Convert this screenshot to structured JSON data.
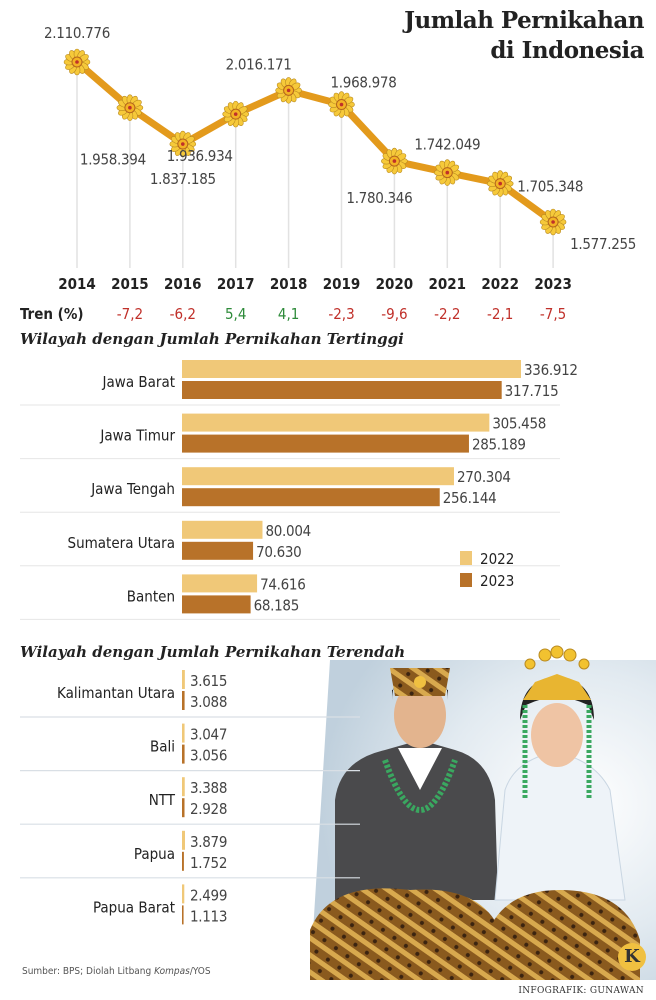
{
  "title": {
    "line1": "Jumlah Pernikahan",
    "line2": "di Indonesia"
  },
  "chart_data": [
    {
      "type": "line",
      "title": "Jumlah Pernikahan di Indonesia",
      "x": [
        "2014",
        "2015",
        "2016",
        "2017",
        "2018",
        "2019",
        "2020",
        "2021",
        "2022",
        "2023"
      ],
      "values": [
        2110776,
        1958394,
        1837185,
        1936934,
        2016171,
        1968978,
        1780346,
        1742049,
        1705348,
        1577255
      ],
      "value_labels": [
        "2.110.776",
        "1.958.394",
        "1.837.185",
        "1.936.934",
        "2.016.171",
        "1.968.978",
        "1.780.346",
        "1.742.049",
        "1.705.348",
        "1.577.255"
      ],
      "trend_label": "Tren (%)",
      "trend": [
        null,
        -7.2,
        -6.2,
        5.4,
        4.1,
        -2.3,
        -9.6,
        -2.2,
        -2.1,
        -7.5
      ],
      "trend_labels": [
        "",
        "-7,2",
        "-6,2",
        "5,4",
        "4,1",
        "-2,3",
        "-9,6",
        "-2,2",
        "-2,1",
        "-7,5"
      ],
      "colors": {
        "line": "#e39a1c",
        "negative": "#c0302a",
        "positive": "#2e8b3a"
      }
    },
    {
      "type": "bar",
      "title": "Wilayah dengan Jumlah Pernikahan Tertinggi",
      "categories": [
        "Jawa Barat",
        "Jawa Timur",
        "Jawa Tengah",
        "Sumatera Utara",
        "Banten"
      ],
      "series": [
        {
          "name": "2022",
          "values": [
            336912,
            305458,
            270304,
            80004,
            74616
          ],
          "labels": [
            "336.912",
            "305.458",
            "270.304",
            "80.004",
            "74.616"
          ],
          "color": "#f0c878"
        },
        {
          "name": "2023",
          "values": [
            317715,
            285189,
            256144,
            70630,
            68185
          ],
          "labels": [
            "317.715",
            "285.189",
            "256.144",
            "70.630",
            "68.185"
          ],
          "color": "#b87229"
        }
      ],
      "legend": "right"
    },
    {
      "type": "bar",
      "title": "Wilayah dengan Jumlah Pernikahan Terendah",
      "categories": [
        "Kalimantan Utara",
        "Bali",
        "NTT",
        "Papua",
        "Papua Barat"
      ],
      "series": [
        {
          "name": "2022",
          "values": [
            3615,
            3047,
            3388,
            3879,
            2499
          ],
          "labels": [
            "3.615",
            "3.047",
            "3.388",
            "3.879",
            "2.499"
          ],
          "color": "#f0c878"
        },
        {
          "name": "2023",
          "values": [
            3088,
            3056,
            2928,
            1752,
            1113
          ],
          "labels": [
            "3.088",
            "3.056",
            "2.928",
            "1.752",
            "1.113"
          ],
          "color": "#b87229"
        }
      ]
    }
  ],
  "footer": {
    "source_prefix": "Sumber: BPS; Diolah Litbang ",
    "source_italic": "Kompas",
    "source_suffix": "/YOS",
    "credit": "INFOGRAFIK: GUNAWAN",
    "logo": "K"
  }
}
